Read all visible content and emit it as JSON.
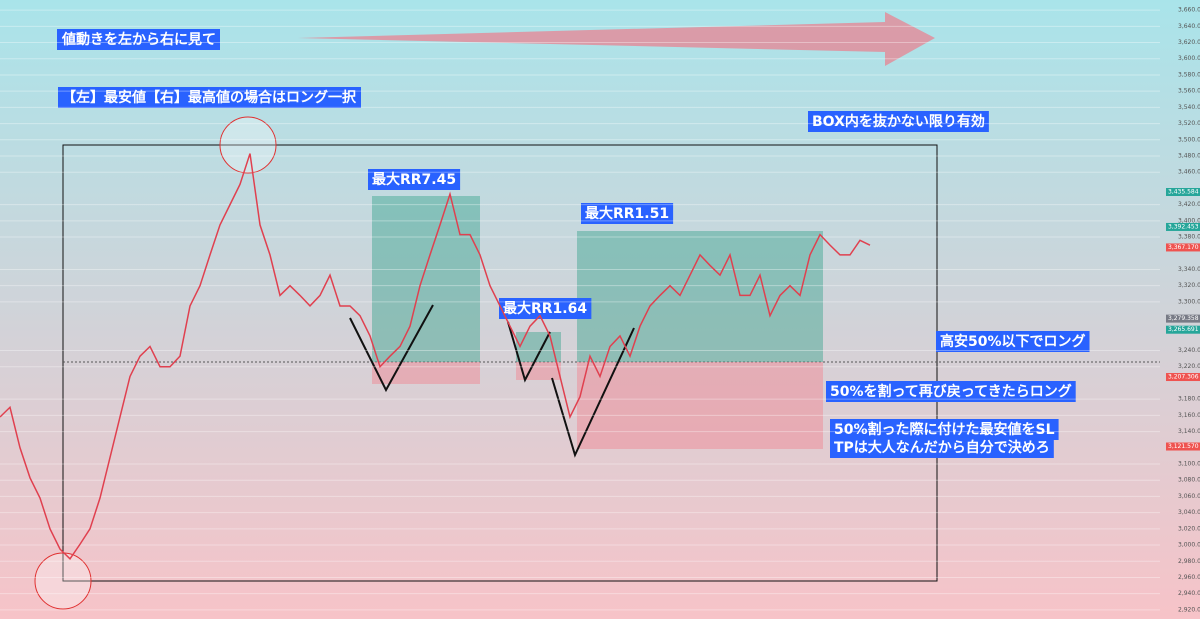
{
  "chart_data": {
    "type": "line",
    "color": "#e0404f",
    "values": [
      3158,
      3170,
      3120,
      3083,
      3058,
      3020,
      2995,
      2983,
      3001,
      3020,
      3058,
      3108,
      3158,
      3208,
      3233,
      3245,
      3220,
      3220,
      3233,
      3295,
      3320,
      3358,
      3395,
      3420,
      3445,
      3483,
      3395,
      3358,
      3308,
      3320,
      3308,
      3295,
      3308,
      3333,
      3295,
      3295,
      3283,
      3258,
      3220,
      3233,
      3245,
      3270,
      3320,
      3358,
      3395,
      3433,
      3383,
      3383,
      3358,
      3320,
      3295,
      3270,
      3245,
      3270,
      3283,
      3258,
      3208,
      3158,
      3183,
      3233,
      3208,
      3245,
      3258,
      3233,
      3270,
      3295,
      3308,
      3320,
      3308,
      3333,
      3358,
      3345,
      3333,
      3358,
      3308,
      3308,
      3333,
      3283,
      3308,
      3320,
      3308,
      3358,
      3383,
      3370,
      3358,
      3358,
      3376,
      3370
    ],
    "ylim": [
      2910,
      3670
    ],
    "yticks": [
      {
        "value": 2920,
        "label": "2,920.000"
      },
      {
        "value": 2940,
        "label": "2,940.000"
      },
      {
        "value": 2960,
        "label": "2,960.000"
      },
      {
        "value": 2980,
        "label": "2,980.000"
      },
      {
        "value": 3000,
        "label": "3,000.000"
      },
      {
        "value": 3020,
        "label": "3,020.000"
      },
      {
        "value": 3040,
        "label": "3,040.000"
      },
      {
        "value": 3060,
        "label": "3,060.000"
      },
      {
        "value": 3080,
        "label": "3,080.000"
      },
      {
        "value": 3100,
        "label": "3,100.000"
      },
      {
        "value": 3140,
        "label": "3,140.000"
      },
      {
        "value": 3160,
        "label": "3,160.000"
      },
      {
        "value": 3180,
        "label": "3,180.000"
      },
      {
        "value": 3220,
        "label": "3,220.000"
      },
      {
        "value": 3240,
        "label": "3,240.000"
      },
      {
        "value": 3300,
        "label": "3,300.000"
      },
      {
        "value": 3320,
        "label": "3,320.000"
      },
      {
        "value": 3340,
        "label": "3,340.000"
      },
      {
        "value": 3380,
        "label": "3,380.000"
      },
      {
        "value": 3400,
        "label": "3,400.000"
      },
      {
        "value": 3420,
        "label": "3,420.000"
      },
      {
        "value": 3460,
        "label": "3,460.000"
      },
      {
        "value": 3480,
        "label": "3,480.000"
      },
      {
        "value": 3500,
        "label": "3,500.000"
      },
      {
        "value": 3520,
        "label": "3,520.000"
      },
      {
        "value": 3540,
        "label": "3,540.000"
      },
      {
        "value": 3560,
        "label": "3,560.000"
      },
      {
        "value": 3580,
        "label": "3,580.000"
      },
      {
        "value": 3600,
        "label": "3,600.000"
      },
      {
        "value": 3620,
        "label": "3,620.000"
      },
      {
        "value": 3640,
        "label": "3,640.000"
      },
      {
        "value": 3660,
        "label": "3,660.000"
      }
    ],
    "price_tags": [
      {
        "value": 3435.584,
        "label": "3,435.584",
        "color": "#26a69a"
      },
      {
        "value": 3392.453,
        "label": "3,392.453",
        "color": "#26a69a"
      },
      {
        "value": 3367.17,
        "label": "3,367.170",
        "color": "#ef5350"
      },
      {
        "value": 3279.358,
        "label": "3,279.358",
        "color": "#787b86"
      },
      {
        "value": 3265.691,
        "label": "3,265.691",
        "color": "#26a69a"
      },
      {
        "value": 3207.306,
        "label": "3,207.306",
        "color": "#ef5350"
      },
      {
        "value": 3121.57,
        "label": "3,121.570",
        "color": "#ef5350"
      }
    ],
    "annotations": [
      "値動きを左から右に見て",
      "【左】最安値【右】最高値の場合はロング一択",
      "BOX内を抜かない限り有効",
      "最大RR7.45",
      "最大RR1.51",
      "最大RR1.64",
      "高安50%以下でロング",
      "50%を割って再び戻ってきたらロング",
      "50%割った際に付けた最安値をSL",
      "TPは大人なんだから自分で決めろ"
    ]
  }
}
